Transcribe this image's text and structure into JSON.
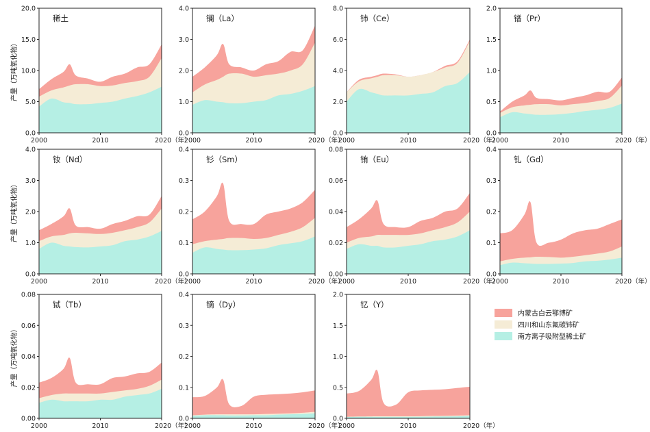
{
  "colors": {
    "inner_mongolia": "#f7a39c",
    "sichuan_shandong": "#f5ecd6",
    "south_ionic": "#b5efe4",
    "frame": "#222222"
  },
  "ylabel": "产量（万吨氧化物）",
  "x_tick_labels": [
    "2000",
    "2010",
    "2020（年）"
  ],
  "legend": [
    {
      "key": "south",
      "label": "南方离子吸附型稀土矿"
    },
    {
      "key": "sichuan",
      "label": "四川和山东氟碳铈矿"
    },
    {
      "key": "inner",
      "label": "内蒙古白云鄂博矿"
    }
  ],
  "chart_data": [
    {
      "type": "area",
      "title": "稀土",
      "x": [
        2000,
        2002,
        2004,
        2005,
        2006,
        2008,
        2010,
        2012,
        2014,
        2016,
        2018,
        2020
      ],
      "ylim": [
        0,
        20
      ],
      "y_ticks": [
        "0.0",
        "5.0",
        "10.0",
        "15.0",
        "20.0"
      ],
      "series": [
        {
          "name": "南方离子吸附型稀土矿",
          "values": [
            4.2,
            5.5,
            4.9,
            4.8,
            4.6,
            4.6,
            4.8,
            5.0,
            5.5,
            5.9,
            6.5,
            7.4
          ]
        },
        {
          "name": "四川和山东氟碳铈矿",
          "values": [
            5.8,
            6.8,
            7.3,
            7.6,
            7.8,
            7.8,
            7.5,
            7.6,
            8.0,
            8.3,
            9.0,
            12.0
          ]
        },
        {
          "name": "内蒙古白云鄂博矿",
          "values": [
            7.0,
            8.6,
            9.8,
            11.0,
            9.2,
            8.7,
            8.2,
            9.0,
            9.5,
            10.5,
            11.0,
            14.2
          ]
        }
      ]
    },
    {
      "type": "area",
      "title": "镧（La）",
      "x": [
        2000,
        2002,
        2004,
        2005,
        2006,
        2008,
        2010,
        2012,
        2014,
        2016,
        2018,
        2020
      ],
      "ylim": [
        0,
        4
      ],
      "y_ticks": [
        "0.0",
        "1.0",
        "2.0",
        "3.0",
        "4.0"
      ],
      "series": [
        {
          "name": "南方离子吸附型稀土矿",
          "values": [
            0.9,
            1.05,
            1.0,
            0.98,
            0.95,
            0.95,
            1.0,
            1.05,
            1.2,
            1.25,
            1.35,
            1.5
          ]
        },
        {
          "name": "四川和山东氟碳铈矿",
          "values": [
            1.3,
            1.55,
            1.7,
            1.8,
            1.9,
            1.9,
            1.8,
            1.85,
            1.9,
            2.0,
            2.2,
            2.9
          ]
        },
        {
          "name": "内蒙古白云鄂博矿",
          "values": [
            1.8,
            2.1,
            2.5,
            2.85,
            2.2,
            2.1,
            2.0,
            2.2,
            2.3,
            2.6,
            2.65,
            3.45
          ]
        }
      ]
    },
    {
      "type": "area",
      "title": "铈（Ce）",
      "x": [
        2000,
        2002,
        2004,
        2005,
        2006,
        2008,
        2010,
        2012,
        2014,
        2016,
        2018,
        2020
      ],
      "ylim": [
        0,
        8
      ],
      "y_ticks": [
        "0.0",
        "2.0",
        "4.0",
        "6.0",
        "8.0"
      ],
      "series": [
        {
          "name": "南方离子吸附型稀土矿",
          "values": [
            2.0,
            2.8,
            2.6,
            2.5,
            2.4,
            2.4,
            2.4,
            2.5,
            2.6,
            3.0,
            3.2,
            3.9
          ]
        },
        {
          "name": "四川和山东氟碳铈矿",
          "values": [
            2.6,
            3.3,
            3.5,
            3.6,
            3.7,
            3.7,
            3.6,
            3.7,
            3.9,
            4.2,
            4.5,
            5.9
          ]
        },
        {
          "name": "内蒙古白云鄂博矿",
          "values": [
            2.6,
            3.4,
            3.6,
            3.7,
            3.8,
            3.75,
            3.6,
            3.7,
            3.9,
            4.3,
            4.6,
            6.0
          ]
        }
      ]
    },
    {
      "type": "area",
      "title": "镨（Pr）",
      "x": [
        2000,
        2002,
        2004,
        2005,
        2006,
        2008,
        2010,
        2012,
        2014,
        2016,
        2018,
        2020
      ],
      "ylim": [
        0,
        2
      ],
      "y_ticks": [
        "0.0",
        "0.5",
        "1.0",
        "1.5",
        "2.0"
      ],
      "series": [
        {
          "name": "南方离子吸附型稀土矿",
          "values": [
            0.25,
            0.33,
            0.31,
            0.3,
            0.29,
            0.29,
            0.3,
            0.32,
            0.35,
            0.37,
            0.4,
            0.47
          ]
        },
        {
          "name": "四川和山东氟碳铈矿",
          "values": [
            0.32,
            0.41,
            0.44,
            0.45,
            0.46,
            0.46,
            0.44,
            0.46,
            0.48,
            0.51,
            0.56,
            0.76
          ]
        },
        {
          "name": "内蒙古白云鄂博矿",
          "values": [
            0.34,
            0.5,
            0.6,
            0.68,
            0.56,
            0.54,
            0.52,
            0.56,
            0.6,
            0.66,
            0.66,
            0.89
          ]
        }
      ]
    },
    {
      "type": "area",
      "title": "钕（Nd）",
      "x": [
        2000,
        2002,
        2004,
        2005,
        2006,
        2008,
        2010,
        2012,
        2014,
        2016,
        2018,
        2020
      ],
      "ylim": [
        0,
        4
      ],
      "y_ticks": [
        "0.0",
        "1.0",
        "2.0",
        "3.0",
        "4.0"
      ],
      "series": [
        {
          "name": "南方离子吸附型稀土矿",
          "values": [
            0.8,
            1.0,
            0.9,
            0.88,
            0.86,
            0.85,
            0.88,
            0.92,
            1.05,
            1.1,
            1.2,
            1.38
          ]
        },
        {
          "name": "四川和山东氟碳铈矿",
          "values": [
            1.05,
            1.2,
            1.25,
            1.3,
            1.32,
            1.3,
            1.28,
            1.32,
            1.4,
            1.5,
            1.65,
            2.1
          ]
        },
        {
          "name": "内蒙古白云鄂博矿",
          "values": [
            1.4,
            1.6,
            1.85,
            2.1,
            1.55,
            1.5,
            1.45,
            1.6,
            1.7,
            1.85,
            1.9,
            2.5
          ]
        }
      ]
    },
    {
      "type": "area",
      "title": "钐（Sm）",
      "x": [
        2000,
        2002,
        2004,
        2005,
        2006,
        2008,
        2010,
        2012,
        2014,
        2016,
        2018,
        2020
      ],
      "ylim": [
        0,
        0.4
      ],
      "y_ticks": [
        "0.0",
        "0.1",
        "0.2",
        "0.3",
        "0.4"
      ],
      "series": [
        {
          "name": "南方离子吸附型稀土矿",
          "values": [
            0.068,
            0.085,
            0.08,
            0.078,
            0.076,
            0.076,
            0.078,
            0.082,
            0.092,
            0.098,
            0.105,
            0.12
          ]
        },
        {
          "name": "四川和山东氟碳铈矿",
          "values": [
            0.095,
            0.105,
            0.11,
            0.112,
            0.115,
            0.115,
            0.112,
            0.115,
            0.125,
            0.135,
            0.15,
            0.18
          ]
        },
        {
          "name": "内蒙古白云鄂博矿",
          "values": [
            0.175,
            0.2,
            0.25,
            0.29,
            0.17,
            0.16,
            0.16,
            0.19,
            0.2,
            0.21,
            0.23,
            0.27
          ]
        }
      ]
    },
    {
      "type": "area",
      "title": "铕（Eu）",
      "x": [
        2000,
        2002,
        2004,
        2005,
        2006,
        2008,
        2010,
        2012,
        2014,
        2016,
        2018,
        2020
      ],
      "ylim": [
        0,
        0.08
      ],
      "y_ticks": [
        "0.00",
        "0.02",
        "0.04",
        "0.06",
        "0.08"
      ],
      "series": [
        {
          "name": "南方离子吸附型稀土矿",
          "values": [
            0.016,
            0.019,
            0.018,
            0.018,
            0.017,
            0.017,
            0.018,
            0.019,
            0.021,
            0.022,
            0.024,
            0.028
          ]
        },
        {
          "name": "四川和山东氟碳铈矿",
          "values": [
            0.02,
            0.023,
            0.024,
            0.025,
            0.025,
            0.025,
            0.025,
            0.026,
            0.028,
            0.03,
            0.033,
            0.04
          ]
        },
        {
          "name": "内蒙古白云鄂博矿",
          "values": [
            0.03,
            0.035,
            0.042,
            0.047,
            0.032,
            0.03,
            0.03,
            0.034,
            0.036,
            0.04,
            0.042,
            0.052
          ]
        }
      ]
    },
    {
      "type": "area",
      "title": "钆（Gd）",
      "x": [
        2000,
        2002,
        2004,
        2005,
        2006,
        2008,
        2010,
        2012,
        2014,
        2016,
        2018,
        2020
      ],
      "ylim": [
        0,
        0.4
      ],
      "y_ticks": [
        "0.0",
        "0.1",
        "0.2",
        "0.3",
        "0.4"
      ],
      "series": [
        {
          "name": "南方离子吸附型稀土矿",
          "values": [
            0.028,
            0.036,
            0.034,
            0.033,
            0.032,
            0.032,
            0.033,
            0.035,
            0.04,
            0.042,
            0.046,
            0.052
          ]
        },
        {
          "name": "四川和山东氟碳铈矿",
          "values": [
            0.04,
            0.048,
            0.052,
            0.053,
            0.055,
            0.054,
            0.052,
            0.055,
            0.06,
            0.065,
            0.072,
            0.088
          ]
        },
        {
          "name": "内蒙古白云鄂博矿",
          "values": [
            0.13,
            0.14,
            0.19,
            0.23,
            0.1,
            0.1,
            0.11,
            0.13,
            0.14,
            0.145,
            0.16,
            0.175
          ]
        }
      ]
    },
    {
      "type": "area",
      "title": "铽（Tb）",
      "x": [
        2000,
        2002,
        2004,
        2005,
        2006,
        2008,
        2010,
        2012,
        2014,
        2016,
        2018,
        2020
      ],
      "ylim": [
        0,
        0.08
      ],
      "y_ticks": [
        "0.00",
        "0.02",
        "0.04",
        "0.06",
        "0.08"
      ],
      "series": [
        {
          "name": "南方离子吸附型稀土矿",
          "values": [
            0.01,
            0.012,
            0.011,
            0.011,
            0.011,
            0.011,
            0.012,
            0.012,
            0.014,
            0.015,
            0.016,
            0.019
          ]
        },
        {
          "name": "四川和山东氟碳铈矿",
          "values": [
            0.013,
            0.015,
            0.016,
            0.016,
            0.016,
            0.016,
            0.016,
            0.017,
            0.018,
            0.019,
            0.021,
            0.025
          ]
        },
        {
          "name": "内蒙古白云鄂博矿",
          "values": [
            0.023,
            0.026,
            0.032,
            0.039,
            0.023,
            0.022,
            0.022,
            0.026,
            0.027,
            0.029,
            0.03,
            0.036
          ]
        }
      ]
    },
    {
      "type": "area",
      "title": "镝（Dy）",
      "x": [
        2000,
        2002,
        2004,
        2005,
        2006,
        2008,
        2010,
        2012,
        2014,
        2016,
        2018,
        2020
      ],
      "ylim": [
        0,
        0.4
      ],
      "y_ticks": [
        "0.0",
        "0.1",
        "0.2",
        "0.3",
        "0.4"
      ],
      "series": [
        {
          "name": "南方离子吸附型稀土矿",
          "values": [
            0.008,
            0.01,
            0.01,
            0.01,
            0.009,
            0.009,
            0.01,
            0.01,
            0.012,
            0.013,
            0.014,
            0.016
          ]
        },
        {
          "name": "四川和山东氟碳铈矿",
          "values": [
            0.01,
            0.012,
            0.013,
            0.013,
            0.013,
            0.013,
            0.013,
            0.014,
            0.015,
            0.016,
            0.018,
            0.021
          ]
        },
        {
          "name": "内蒙古白云鄂博矿",
          "values": [
            0.068,
            0.072,
            0.1,
            0.125,
            0.045,
            0.04,
            0.07,
            0.076,
            0.078,
            0.08,
            0.084,
            0.09
          ]
        }
      ]
    },
    {
      "type": "area",
      "title": "钇（Y）",
      "x": [
        2000,
        2002,
        2004,
        2005,
        2006,
        2008,
        2010,
        2012,
        2014,
        2016,
        2018,
        2020
      ],
      "ylim": [
        0,
        2
      ],
      "y_ticks": [
        "0.0",
        "0.5",
        "1.0",
        "1.5",
        "2.0"
      ],
      "series": [
        {
          "name": "南方离子吸附型稀土矿",
          "values": [
            0.02,
            0.025,
            0.024,
            0.024,
            0.023,
            0.023,
            0.024,
            0.025,
            0.028,
            0.03,
            0.032,
            0.04
          ]
        },
        {
          "name": "四川和山东氟碳铈矿",
          "values": [
            0.025,
            0.03,
            0.032,
            0.033,
            0.033,
            0.033,
            0.033,
            0.035,
            0.038,
            0.04,
            0.044,
            0.05
          ]
        },
        {
          "name": "内蒙古白云鄂博矿",
          "values": [
            0.4,
            0.44,
            0.62,
            0.77,
            0.25,
            0.22,
            0.42,
            0.45,
            0.46,
            0.47,
            0.49,
            0.51
          ]
        }
      ]
    }
  ]
}
